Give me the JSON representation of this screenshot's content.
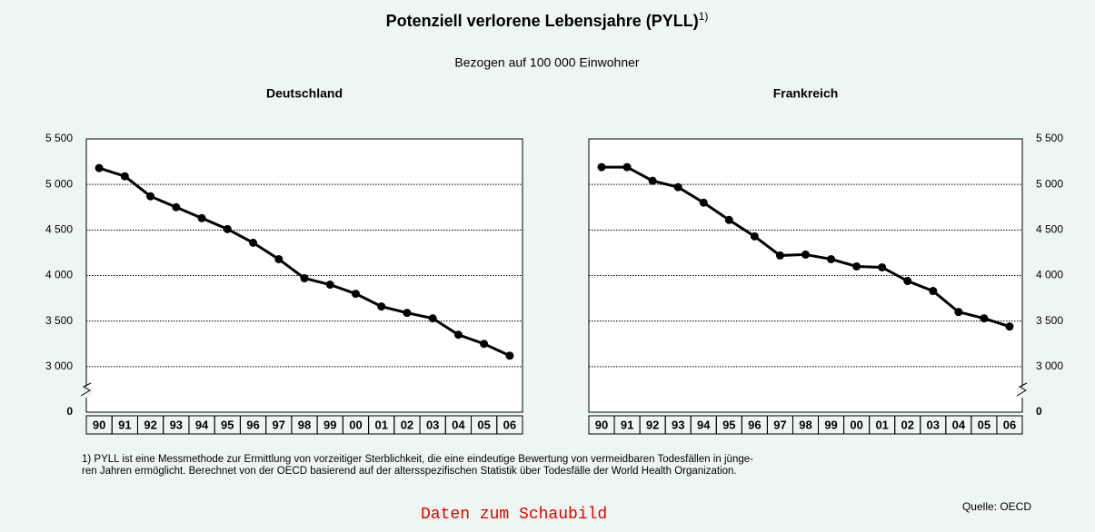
{
  "title": "Potenziell verlorene Lebensjahre (PYLL)",
  "title_note": "1)",
  "subtitle": "Bezogen auf 100 000 Einwohner",
  "footnote": [
    "1) PYLL ist eine Messmethode zur Ermittlung von vorzeitiger Sterblichkeit, die eine eindeutige Bewertung von vermeidbaren Todesfällen in jünge-",
    "ren Jahren ermöglicht. Berechnet von der OECD basierend auf der altersspezifischen Statistik über Todesfälle der World Health Organization."
  ],
  "source": "Quelle: OECD",
  "link": "Daten zum Schaubild",
  "chart_data": [
    {
      "type": "line",
      "title": "Deutschland",
      "categories": [
        "90",
        "91",
        "92",
        "93",
        "94",
        "95",
        "96",
        "97",
        "98",
        "99",
        "00",
        "01",
        "02",
        "03",
        "04",
        "05",
        "06"
      ],
      "values": [
        5180,
        5090,
        4870,
        4750,
        4630,
        4510,
        4360,
        4180,
        3970,
        3900,
        3800,
        3660,
        3590,
        3530,
        3350,
        3250,
        3120
      ],
      "color": "#000000",
      "marker": "circle",
      "ylim": [
        2500,
        5500
      ],
      "axis_break": true,
      "ytick_side": "left",
      "grid": true,
      "yticks": [
        {
          "value": 0,
          "label": "0"
        },
        {
          "value": 3000,
          "label": "3 000"
        },
        {
          "value": 3500,
          "label": "3 500"
        },
        {
          "value": 4000,
          "label": "4 000"
        },
        {
          "value": 4500,
          "label": "4 500"
        },
        {
          "value": 5000,
          "label": "5 000"
        },
        {
          "value": 5500,
          "label": "5 500"
        }
      ]
    },
    {
      "type": "line",
      "title": "Frankreich",
      "categories": [
        "90",
        "91",
        "92",
        "93",
        "94",
        "95",
        "96",
        "97",
        "98",
        "99",
        "00",
        "01",
        "02",
        "03",
        "04",
        "05",
        "06"
      ],
      "values": [
        5190,
        5190,
        5040,
        4970,
        4800,
        4610,
        4430,
        4220,
        4230,
        4180,
        4100,
        4090,
        3940,
        3830,
        3600,
        3530,
        3440
      ],
      "color": "#000000",
      "marker": "circle",
      "ylim": [
        2500,
        5500
      ],
      "axis_break": true,
      "ytick_side": "right",
      "grid": true,
      "yticks": [
        {
          "value": 0,
          "label": "0"
        },
        {
          "value": 3000,
          "label": "3 000"
        },
        {
          "value": 3500,
          "label": "3 500"
        },
        {
          "value": 4000,
          "label": "4 000"
        },
        {
          "value": 4500,
          "label": "4 500"
        },
        {
          "value": 5000,
          "label": "5 000"
        },
        {
          "value": 5500,
          "label": "5 500"
        }
      ]
    }
  ]
}
